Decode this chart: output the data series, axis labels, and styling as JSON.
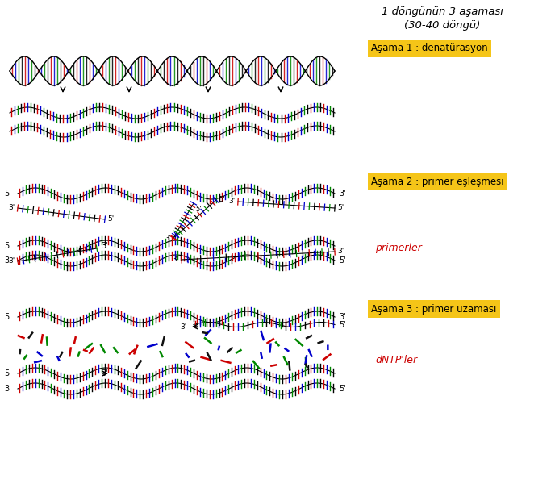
{
  "title_text": "1 döngünün 3 aşaması\n(30-40 döngü)",
  "label1": "Aşama 1 : denatürasyon",
  "label2": "Aşama 2 : primer eşleşmesi",
  "label3": "Aşama 3 : primer uzaması",
  "primerler": "primerler",
  "dNTP": "dNTP'ler",
  "label_bg": "#F5C518",
  "label_fg": "#000000",
  "primerler_color": "#CC0000",
  "dNTP_color": "#CC0000",
  "title_color": "#000000",
  "dna_colors": [
    "#CC0000",
    "#0000CC",
    "#008800",
    "#000000"
  ],
  "bg_color": "#FFFFFF"
}
